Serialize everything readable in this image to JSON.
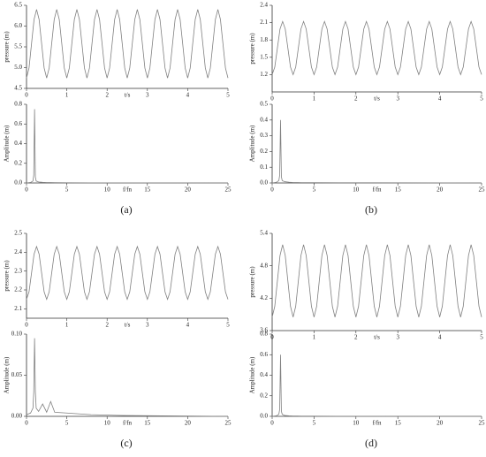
{
  "chart_data": [
    {
      "type": "line",
      "y_label": "pressure (m)",
      "x_label": "t/s",
      "color": "#808080",
      "xlim": [
        0,
        5
      ],
      "xticks": [
        0,
        1,
        2,
        3,
        4,
        5
      ],
      "ylim": [
        4.5,
        6.5
      ],
      "yticks": [
        4.5,
        {
          "value": 5,
          "label": "5.0"
        },
        5.5,
        {
          "value": 6,
          "label": "6.0"
        },
        6.5
      ],
      "x": [
        0,
        0.0625,
        0.125,
        0.1875,
        0.25,
        0.3125,
        0.375,
        0.4375,
        0.5,
        0.5625,
        0.625,
        0.6875,
        0.75,
        0.8125,
        0.875,
        0.9375,
        1,
        1.0625,
        1.125,
        1.1875,
        1.25,
        1.3125,
        1.375,
        1.4375,
        1.5,
        1.5625,
        1.625,
        1.6875,
        1.75,
        1.8125,
        1.875,
        1.9375,
        2,
        2.0625,
        2.125,
        2.1875,
        2.25,
        2.3125,
        2.375,
        2.4375,
        2.5,
        2.5625,
        2.625,
        2.6875,
        2.75,
        2.8125,
        2.875,
        2.9375,
        3,
        3.0625,
        3.125,
        3.1875,
        3.25,
        3.3125,
        3.375,
        3.4375,
        3.5,
        3.5625,
        3.625,
        3.6875,
        3.75,
        3.8125,
        3.875,
        3.9375,
        4,
        4.0625,
        4.125,
        4.1875,
        4.25,
        4.3125,
        4.375,
        4.4375,
        4.5,
        4.5625,
        4.625,
        4.6875,
        4.75,
        4.8125,
        4.875,
        4.9375,
        5
      ],
      "values": [
        4.75,
        4.99,
        5.58,
        6.16,
        6.4,
        6.16,
        5.58,
        4.99,
        4.75,
        4.99,
        5.58,
        6.16,
        6.4,
        6.16,
        5.58,
        4.99,
        4.75,
        4.99,
        5.58,
        6.16,
        6.4,
        6.16,
        5.58,
        4.99,
        4.75,
        4.99,
        5.58,
        6.16,
        6.4,
        6.16,
        5.58,
        4.99,
        4.75,
        4.99,
        5.58,
        6.16,
        6.4,
        6.16,
        5.58,
        4.99,
        4.75,
        4.99,
        5.58,
        6.16,
        6.4,
        6.16,
        5.58,
        4.99,
        4.75,
        4.99,
        5.58,
        6.16,
        6.4,
        6.16,
        5.58,
        4.99,
        4.75,
        4.99,
        5.58,
        6.16,
        6.4,
        6.16,
        5.58,
        4.99,
        4.75,
        4.99,
        5.58,
        6.16,
        6.4,
        6.16,
        5.58,
        4.99,
        4.75,
        4.99,
        5.58,
        6.16,
        6.4,
        6.16,
        5.58,
        4.99,
        4.75
      ]
    },
    {
      "type": "line",
      "y_label": "Amplitude (m)",
      "x_label": "f/fn",
      "color": "#808080",
      "xlim": [
        0,
        25
      ],
      "xticks": [
        0,
        5,
        10,
        15,
        20,
        25
      ],
      "ylim": [
        0,
        0.8
      ],
      "yticks": [
        {
          "value": 0,
          "label": "0.0"
        },
        0.2,
        0.4,
        0.6,
        0.8
      ],
      "x": [
        0,
        0.5,
        0.8,
        0.9,
        1,
        1.1,
        1.2,
        1.5,
        2,
        2.5,
        3,
        3.5,
        5,
        8,
        12,
        25
      ],
      "values": [
        0,
        0.005,
        0.02,
        0.08,
        0.75,
        0.06,
        0.02,
        0.01,
        0.006,
        0.004,
        0.004,
        0.003,
        0.002,
        0.001,
        0.001,
        0
      ]
    },
    {
      "type": "line",
      "y_label": "pressure (m)",
      "x_label": "t/s",
      "color": "#808080",
      "xlim": [
        0,
        5
      ],
      "xticks": [
        0,
        1,
        2,
        3,
        4,
        5
      ],
      "ylim": [
        0.9,
        2.4
      ],
      "yticks": [
        1.2,
        1.5,
        1.8,
        2.1,
        2.4
      ],
      "x": [
        0,
        0.0625,
        0.125,
        0.1875,
        0.25,
        0.3125,
        0.375,
        0.4375,
        0.5,
        0.5625,
        0.625,
        0.6875,
        0.75,
        0.8125,
        0.875,
        0.9375,
        1,
        1.0625,
        1.125,
        1.1875,
        1.25,
        1.3125,
        1.375,
        1.4375,
        1.5,
        1.5625,
        1.625,
        1.6875,
        1.75,
        1.8125,
        1.875,
        1.9375,
        2,
        2.0625,
        2.125,
        2.1875,
        2.25,
        2.3125,
        2.375,
        2.4375,
        2.5,
        2.5625,
        2.625,
        2.6875,
        2.75,
        2.8125,
        2.875,
        2.9375,
        3,
        3.0625,
        3.125,
        3.1875,
        3.25,
        3.3125,
        3.375,
        3.4375,
        3.5,
        3.5625,
        3.625,
        3.6875,
        3.75,
        3.8125,
        3.875,
        3.9375,
        4,
        4.0625,
        4.125,
        4.1875,
        4.25,
        4.3125,
        4.375,
        4.4375,
        4.5,
        4.5625,
        4.625,
        4.6875,
        4.75,
        4.8125,
        4.875,
        4.9375,
        5
      ],
      "values": [
        1.2,
        1.33,
        1.66,
        1.99,
        2.12,
        1.99,
        1.66,
        1.33,
        1.2,
        1.33,
        1.66,
        1.99,
        2.12,
        1.99,
        1.66,
        1.33,
        1.2,
        1.33,
        1.66,
        1.99,
        2.12,
        1.99,
        1.66,
        1.33,
        1.2,
        1.33,
        1.66,
        1.99,
        2.12,
        1.99,
        1.66,
        1.33,
        1.2,
        1.33,
        1.66,
        1.99,
        2.12,
        1.99,
        1.66,
        1.33,
        1.2,
        1.33,
        1.66,
        1.99,
        2.12,
        1.99,
        1.66,
        1.33,
        1.2,
        1.33,
        1.66,
        1.99,
        2.12,
        1.99,
        1.66,
        1.33,
        1.2,
        1.33,
        1.66,
        1.99,
        2.12,
        1.99,
        1.66,
        1.33,
        1.2,
        1.33,
        1.66,
        1.99,
        2.12,
        1.99,
        1.66,
        1.33,
        1.2,
        1.33,
        1.66,
        1.99,
        2.12,
        1.99,
        1.66,
        1.33,
        1.2
      ]
    },
    {
      "type": "line",
      "y_label": "Amplitude (m)",
      "x_label": "f/fn",
      "color": "#808080",
      "xlim": [
        0,
        25
      ],
      "xticks": [
        0,
        5,
        10,
        15,
        20,
        25
      ],
      "ylim": [
        0,
        0.5
      ],
      "yticks": [
        {
          "value": 0,
          "label": "0.0"
        },
        0.1,
        0.2,
        0.3,
        0.4,
        0.5
      ],
      "x": [
        0,
        0.5,
        0.8,
        0.9,
        1,
        1.1,
        1.2,
        1.5,
        2,
        2.5,
        3,
        3.5,
        5,
        8,
        12,
        25
      ],
      "values": [
        0,
        0.004,
        0.015,
        0.05,
        0.4,
        0.04,
        0.015,
        0.008,
        0.005,
        0.003,
        0.003,
        0.002,
        0.002,
        0.001,
        0.001,
        0
      ]
    },
    {
      "type": "line",
      "y_label": "pressure (m)",
      "x_label": "t/s",
      "color": "#808080",
      "xlim": [
        0,
        5
      ],
      "xticks": [
        0,
        1,
        2,
        3,
        4,
        5
      ],
      "ylim": [
        2.05,
        2.5
      ],
      "yticks": [
        2.1,
        2.2,
        2.3,
        2.4,
        2.5
      ],
      "x": [
        0,
        0.0625,
        0.125,
        0.1875,
        0.25,
        0.3125,
        0.375,
        0.4375,
        0.5,
        0.5625,
        0.625,
        0.6875,
        0.75,
        0.8125,
        0.875,
        0.9375,
        1,
        1.0625,
        1.125,
        1.1875,
        1.25,
        1.3125,
        1.375,
        1.4375,
        1.5,
        1.5625,
        1.625,
        1.6875,
        1.75,
        1.8125,
        1.875,
        1.9375,
        2,
        2.0625,
        2.125,
        2.1875,
        2.25,
        2.3125,
        2.375,
        2.4375,
        2.5,
        2.5625,
        2.625,
        2.6875,
        2.75,
        2.8125,
        2.875,
        2.9375,
        3,
        3.0625,
        3.125,
        3.1875,
        3.25,
        3.3125,
        3.375,
        3.4375,
        3.5,
        3.5625,
        3.625,
        3.6875,
        3.75,
        3.8125,
        3.875,
        3.9375,
        4,
        4.0625,
        4.125,
        4.1875,
        4.25,
        4.3125,
        4.375,
        4.4375,
        4.5,
        4.5625,
        4.625,
        4.6875,
        4.75,
        4.8125,
        4.875,
        4.9375,
        5
      ],
      "values": [
        2.15,
        2.19,
        2.29,
        2.39,
        2.43,
        2.39,
        2.29,
        2.19,
        2.15,
        2.19,
        2.29,
        2.39,
        2.43,
        2.39,
        2.29,
        2.19,
        2.15,
        2.19,
        2.29,
        2.39,
        2.43,
        2.39,
        2.29,
        2.19,
        2.15,
        2.19,
        2.29,
        2.39,
        2.43,
        2.39,
        2.29,
        2.19,
        2.15,
        2.19,
        2.29,
        2.39,
        2.43,
        2.39,
        2.29,
        2.19,
        2.15,
        2.19,
        2.29,
        2.39,
        2.43,
        2.39,
        2.29,
        2.19,
        2.15,
        2.19,
        2.29,
        2.39,
        2.43,
        2.39,
        2.29,
        2.19,
        2.15,
        2.19,
        2.29,
        2.39,
        2.43,
        2.39,
        2.29,
        2.19,
        2.15,
        2.19,
        2.29,
        2.39,
        2.43,
        2.39,
        2.29,
        2.19,
        2.15,
        2.19,
        2.29,
        2.39,
        2.43,
        2.39,
        2.29,
        2.19,
        2.15
      ]
    },
    {
      "type": "line",
      "y_label": "Amplitude (m)",
      "x_label": "f/fn",
      "color": "#808080",
      "xlim": [
        0,
        25
      ],
      "xticks": [
        0,
        5,
        10,
        15,
        20,
        25
      ],
      "ylim": [
        0,
        0.1
      ],
      "yticks": [
        {
          "value": 0,
          "label": "0.00"
        },
        0.05,
        {
          "value": 0.1,
          "label": "0.10"
        }
      ],
      "x": [
        0,
        0.5,
        0.8,
        0.9,
        1,
        1.1,
        1.2,
        1.5,
        2,
        2.5,
        3,
        3.5,
        5,
        8,
        12,
        25
      ],
      "values": [
        0.002,
        0.004,
        0.01,
        0.03,
        0.095,
        0.03,
        0.01,
        0.006,
        0.015,
        0.005,
        0.018,
        0.005,
        0.004,
        0.002,
        0.001,
        0
      ]
    },
    {
      "type": "line",
      "y_label": "pressure (m)",
      "x_label": "t/s",
      "color": "#808080",
      "xlim": [
        0,
        5
      ],
      "xticks": [
        0,
        1,
        2,
        3,
        4,
        5
      ],
      "ylim": [
        3.6,
        5.4
      ],
      "yticks": [
        3.6,
        4.2,
        4.8,
        5.4
      ],
      "x": [
        0,
        0.0625,
        0.125,
        0.1875,
        0.25,
        0.3125,
        0.375,
        0.4375,
        0.5,
        0.5625,
        0.625,
        0.6875,
        0.75,
        0.8125,
        0.875,
        0.9375,
        1,
        1.0625,
        1.125,
        1.1875,
        1.25,
        1.3125,
        1.375,
        1.4375,
        1.5,
        1.5625,
        1.625,
        1.6875,
        1.75,
        1.8125,
        1.875,
        1.9375,
        2,
        2.0625,
        2.125,
        2.1875,
        2.25,
        2.3125,
        2.375,
        2.4375,
        2.5,
        2.5625,
        2.625,
        2.6875,
        2.75,
        2.8125,
        2.875,
        2.9375,
        3,
        3.0625,
        3.125,
        3.1875,
        3.25,
        3.3125,
        3.375,
        3.4375,
        3.5,
        3.5625,
        3.625,
        3.6875,
        3.75,
        3.8125,
        3.875,
        3.9375,
        4,
        4.0625,
        4.125,
        4.1875,
        4.25,
        4.3125,
        4.375,
        4.4375,
        4.5,
        4.5625,
        4.625,
        4.6875,
        4.75,
        4.8125,
        4.875,
        4.9375,
        5
      ],
      "values": [
        3.85,
        4.05,
        4.52,
        4.99,
        5.19,
        4.99,
        4.52,
        4.05,
        3.85,
        4.05,
        4.52,
        4.99,
        5.19,
        4.99,
        4.52,
        4.05,
        3.85,
        4.05,
        4.52,
        4.99,
        5.19,
        4.99,
        4.52,
        4.05,
        3.85,
        4.05,
        4.52,
        4.99,
        5.19,
        4.99,
        4.52,
        4.05,
        3.85,
        4.05,
        4.52,
        4.99,
        5.19,
        4.99,
        4.52,
        4.05,
        3.85,
        4.05,
        4.52,
        4.99,
        5.19,
        4.99,
        4.52,
        4.05,
        3.85,
        4.05,
        4.52,
        4.99,
        5.19,
        4.99,
        4.52,
        4.05,
        3.85,
        4.05,
        4.52,
        4.99,
        5.19,
        4.99,
        4.52,
        4.05,
        3.85,
        4.05,
        4.52,
        4.99,
        5.19,
        4.99,
        4.52,
        4.05,
        3.85,
        4.05,
        4.52,
        4.99,
        5.19,
        4.99,
        4.52,
        4.05,
        3.85
      ]
    },
    {
      "type": "line",
      "y_label": "Amplitude (m)",
      "x_label": "f/fn",
      "color": "#808080",
      "xlim": [
        0,
        25
      ],
      "xticks": [
        0,
        5,
        10,
        15,
        20,
        25
      ],
      "ylim": [
        0,
        0.8
      ],
      "yticks": [
        {
          "value": 0,
          "label": "0.0"
        },
        0.2,
        0.4,
        0.6,
        0.8
      ],
      "x": [
        0,
        0.5,
        0.8,
        0.9,
        1,
        1.1,
        1.2,
        1.5,
        2,
        2.5,
        3,
        3.5,
        5,
        8,
        12,
        25
      ],
      "values": [
        0,
        0.005,
        0.02,
        0.07,
        0.6,
        0.05,
        0.02,
        0.008,
        0.005,
        0.003,
        0.003,
        0.002,
        0.002,
        0.001,
        0.001,
        0
      ]
    }
  ],
  "panel_labels": [
    "(a)",
    "(b)",
    "(c)",
    "(d)"
  ]
}
